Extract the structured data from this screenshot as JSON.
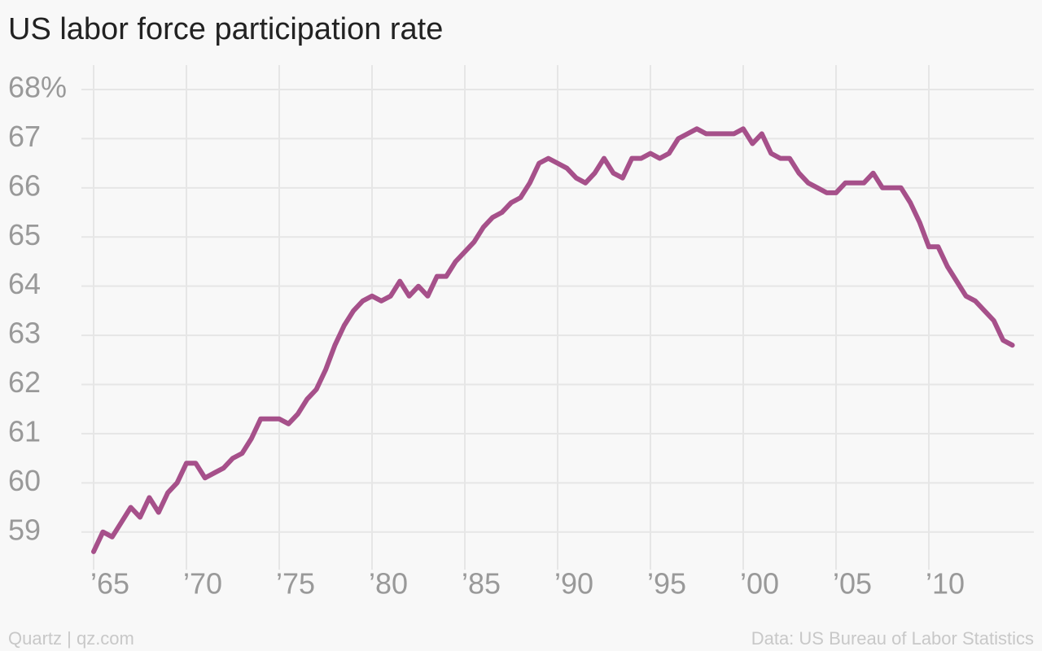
{
  "chart_data": {
    "type": "line",
    "title": "US labor force participation rate",
    "credit": "Quartz | qz.com",
    "source": "Data: US Bureau of Labor Statistics",
    "xlim": [
      1965,
      2015
    ],
    "ylim": [
      58.4,
      68
    ],
    "xticks": [
      {
        "value": 1965,
        "label": "’65"
      },
      {
        "value": 1970,
        "label": "’70"
      },
      {
        "value": 1975,
        "label": "’75"
      },
      {
        "value": 1980,
        "label": "’80"
      },
      {
        "value": 1985,
        "label": "’85"
      },
      {
        "value": 1990,
        "label": "’90"
      },
      {
        "value": 1995,
        "label": "’95"
      },
      {
        "value": 2000,
        "label": "’00"
      },
      {
        "value": 2005,
        "label": "’05"
      },
      {
        "value": 2010,
        "label": "’10"
      }
    ],
    "yticks": [
      59,
      60,
      61,
      62,
      63,
      64,
      65,
      66,
      67,
      {
        "value": 68,
        "label": "68%"
      }
    ],
    "grid": true,
    "x": [
      1965,
      1965.5,
      1966,
      1966.5,
      1967,
      1967.5,
      1968,
      1968.5,
      1969,
      1969.5,
      1970,
      1970.5,
      1971,
      1971.5,
      1972,
      1972.5,
      1973,
      1973.5,
      1974,
      1974.5,
      1975,
      1975.5,
      1976,
      1976.5,
      1977,
      1977.5,
      1978,
      1978.5,
      1979,
      1979.5,
      1980,
      1980.5,
      1981,
      1981.5,
      1982,
      1982.5,
      1983,
      1983.5,
      1984,
      1984.5,
      1985,
      1985.5,
      1986,
      1986.5,
      1987,
      1987.5,
      1988,
      1988.5,
      1989,
      1989.5,
      1990,
      1990.5,
      1991,
      1991.5,
      1992,
      1992.5,
      1993,
      1993.5,
      1994,
      1994.5,
      1995,
      1995.5,
      1996,
      1996.5,
      1997,
      1997.5,
      1998,
      1998.5,
      1999,
      1999.5,
      2000,
      2000.5,
      2001,
      2001.5,
      2002,
      2002.5,
      2003,
      2003.5,
      2004,
      2004.5,
      2005,
      2005.5,
      2006,
      2006.5,
      2007,
      2007.5,
      2008,
      2008.5,
      2009,
      2009.5,
      2010,
      2010.5,
      2011,
      2011.5,
      2012,
      2012.5,
      2013,
      2013.5,
      2014,
      2014.5
    ],
    "series": [
      {
        "name": "Participation rate",
        "color": "#a6508a",
        "values": [
          58.6,
          59.0,
          58.9,
          59.2,
          59.5,
          59.3,
          59.7,
          59.4,
          59.8,
          60.0,
          60.4,
          60.4,
          60.1,
          60.2,
          60.3,
          60.5,
          60.6,
          60.9,
          61.3,
          61.3,
          61.3,
          61.2,
          61.4,
          61.7,
          61.9,
          62.3,
          62.8,
          63.2,
          63.5,
          63.7,
          63.8,
          63.7,
          63.8,
          64.1,
          63.8,
          64.0,
          63.8,
          64.2,
          64.2,
          64.5,
          64.7,
          64.9,
          65.2,
          65.4,
          65.5,
          65.7,
          65.8,
          66.1,
          66.5,
          66.6,
          66.5,
          66.4,
          66.2,
          66.1,
          66.3,
          66.6,
          66.3,
          66.2,
          66.6,
          66.6,
          66.7,
          66.6,
          66.7,
          67.0,
          67.1,
          67.2,
          67.1,
          67.1,
          67.1,
          67.1,
          67.2,
          66.9,
          67.1,
          66.7,
          66.6,
          66.6,
          66.3,
          66.1,
          66.0,
          65.9,
          65.9,
          66.1,
          66.1,
          66.1,
          66.3,
          66.0,
          66.0,
          66.0,
          65.7,
          65.3,
          64.8,
          64.8,
          64.4,
          64.1,
          63.8,
          63.7,
          63.5,
          63.3,
          62.9,
          62.8
        ]
      }
    ]
  }
}
